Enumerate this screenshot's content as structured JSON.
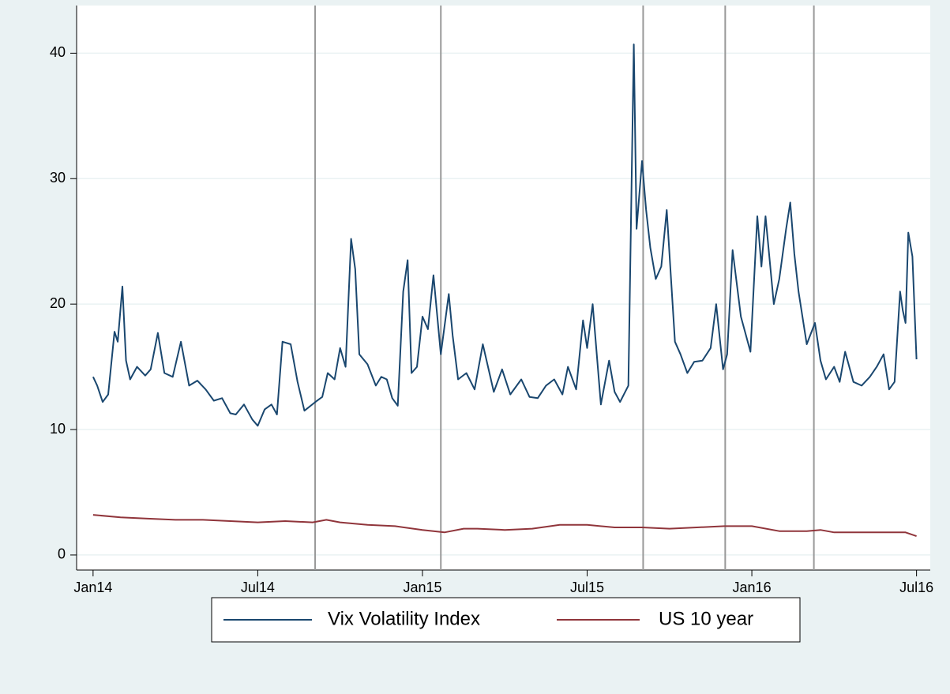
{
  "chart_data": {
    "type": "line",
    "xlim": [
      -0.6,
      30.5
    ],
    "xticks": [
      {
        "value": 0,
        "label": "Jan14"
      },
      {
        "value": 6,
        "label": "Jul14"
      },
      {
        "value": 12,
        "label": "Jan15"
      },
      {
        "value": 18,
        "label": "Jul15"
      },
      {
        "value": 24,
        "label": "Jan16"
      },
      {
        "value": 30,
        "label": "Jul16"
      }
    ],
    "ylim": [
      -1.2,
      43.8
    ],
    "yticks": [
      0,
      10,
      20,
      30,
      40
    ],
    "grid": true,
    "vlines": [
      8.09,
      12.67,
      20.04,
      23.03,
      26.26
    ],
    "legend": "bottom",
    "series": [
      {
        "name": "Vix Volatility Index",
        "color": "#1a476f",
        "x": [
          0,
          0.15,
          0.35,
          0.55,
          0.78,
          0.9,
          1.07,
          1.2,
          1.35,
          1.6,
          1.9,
          2.1,
          2.36,
          2.6,
          2.9,
          3.2,
          3.5,
          3.8,
          4.1,
          4.4,
          4.7,
          5.0,
          5.2,
          5.5,
          5.8,
          6.0,
          6.25,
          6.5,
          6.7,
          6.9,
          7.2,
          7.45,
          7.7,
          8.1,
          8.35,
          8.55,
          8.8,
          9.0,
          9.2,
          9.4,
          9.55,
          9.7,
          10.0,
          10.3,
          10.5,
          10.7,
          10.9,
          11.1,
          11.3,
          11.46,
          11.6,
          11.8,
          12.0,
          12.2,
          12.4,
          12.67,
          12.96,
          13.1,
          13.3,
          13.6,
          13.9,
          14.2,
          14.6,
          14.9,
          15.2,
          15.6,
          15.9,
          16.2,
          16.5,
          16.8,
          17.1,
          17.3,
          17.6,
          17.85,
          18.0,
          18.2,
          18.5,
          18.8,
          19.0,
          19.2,
          19.5,
          19.7,
          19.8,
          20.0,
          20.15,
          20.3,
          20.5,
          20.7,
          20.9,
          21.2,
          21.4,
          21.65,
          21.9,
          22.2,
          22.5,
          22.7,
          22.95,
          23.1,
          23.3,
          23.6,
          23.95,
          24.2,
          24.35,
          24.5,
          24.8,
          25.0,
          25.25,
          25.4,
          25.55,
          25.7,
          26.0,
          26.3,
          26.5,
          26.7,
          27.0,
          27.2,
          27.4,
          27.7,
          28.0,
          28.3,
          28.55,
          28.8,
          29.0,
          29.2,
          29.4,
          29.5,
          29.6,
          29.7,
          29.85,
          30.0
        ],
        "values": [
          14.2,
          13.5,
          12.2,
          12.8,
          17.8,
          17.0,
          21.4,
          15.5,
          14.0,
          15.0,
          14.3,
          14.8,
          17.7,
          14.5,
          14.2,
          17.0,
          13.5,
          13.9,
          13.2,
          12.3,
          12.5,
          11.3,
          11.2,
          12.0,
          10.8,
          10.3,
          11.6,
          12.0,
          11.2,
          17.0,
          16.8,
          13.8,
          11.5,
          12.2,
          12.6,
          14.5,
          14.0,
          16.5,
          15.0,
          25.2,
          22.8,
          16.0,
          15.2,
          13.5,
          14.2,
          14.0,
          12.5,
          11.9,
          21.0,
          23.5,
          14.5,
          15.0,
          19.0,
          18.0,
          22.3,
          16.0,
          20.8,
          17.5,
          14.0,
          14.5,
          13.2,
          16.8,
          13.0,
          14.8,
          12.8,
          14.0,
          12.6,
          12.5,
          13.5,
          14.0,
          12.8,
          15.0,
          13.2,
          18.7,
          16.5,
          20.0,
          12.0,
          15.5,
          13.0,
          12.2,
          13.5,
          40.7,
          26.0,
          31.4,
          27.5,
          24.5,
          22.0,
          23.0,
          27.5,
          17.0,
          16.0,
          14.5,
          15.4,
          15.5,
          16.5,
          20.0,
          14.8,
          16.0,
          24.3,
          19.0,
          16.2,
          27.0,
          23.0,
          27.0,
          20.0,
          22.0,
          26.0,
          28.1,
          24.0,
          21.0,
          16.8,
          18.5,
          15.5,
          14.0,
          15.0,
          13.8,
          16.2,
          13.8,
          13.5,
          14.2,
          15.0,
          16.0,
          13.2,
          13.8,
          21.0,
          19.5,
          18.5,
          25.7,
          23.8,
          15.6
        ]
      },
      {
        "name": "US 10 year",
        "color": "#90353b",
        "x": [
          0,
          1,
          2,
          3,
          4,
          5,
          6,
          7,
          8,
          8.5,
          9,
          10,
          11,
          12,
          12.8,
          13.5,
          14,
          15,
          16,
          17,
          18,
          19,
          20,
          21,
          22,
          23,
          24,
          25,
          26,
          26.5,
          27,
          28,
          29,
          29.6,
          30
        ],
        "values": [
          3.2,
          3.0,
          2.9,
          2.8,
          2.8,
          2.7,
          2.6,
          2.7,
          2.6,
          2.8,
          2.6,
          2.4,
          2.3,
          2.0,
          1.8,
          2.1,
          2.1,
          2.0,
          2.1,
          2.4,
          2.4,
          2.2,
          2.2,
          2.1,
          2.2,
          2.3,
          2.3,
          1.9,
          1.9,
          2.0,
          1.8,
          1.8,
          1.8,
          1.8,
          1.5
        ]
      }
    ]
  }
}
